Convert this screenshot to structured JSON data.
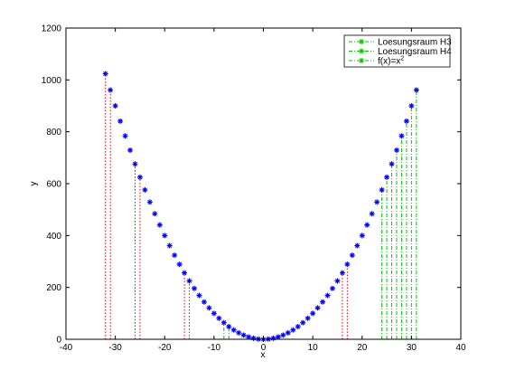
{
  "chart_data": {
    "type": "scatter",
    "title": "",
    "xlabel": "x",
    "ylabel": "y",
    "xlim": [
      -40,
      40
    ],
    "ylim": [
      0,
      1200
    ],
    "xticks": [
      -40,
      -30,
      -20,
      -10,
      0,
      10,
      20,
      30,
      40
    ],
    "yticks": [
      0,
      200,
      400,
      600,
      800,
      1000,
      1200
    ],
    "grid": false,
    "legend_position": "top-right",
    "series": [
      {
        "name": "Loesungsraum H3",
        "style": "dash-dot",
        "marker": "none",
        "color": "#ff0000",
        "x": [
          -32,
          -31,
          -26,
          -25,
          -16,
          -15,
          16,
          17
        ]
      },
      {
        "name": "Loesungsraum H4",
        "style": "dash-dot",
        "marker": "none",
        "color": "#00cc00",
        "x": [
          -8,
          -7,
          24,
          25,
          26,
          27,
          28,
          29,
          30,
          31
        ]
      },
      {
        "name": "f(x)=x",
        "name_superscript": "2",
        "style": "markers",
        "marker": "asterisk",
        "color": "#0000ff",
        "x_from": -32,
        "x_to": 31,
        "x_step": 1
      }
    ]
  }
}
